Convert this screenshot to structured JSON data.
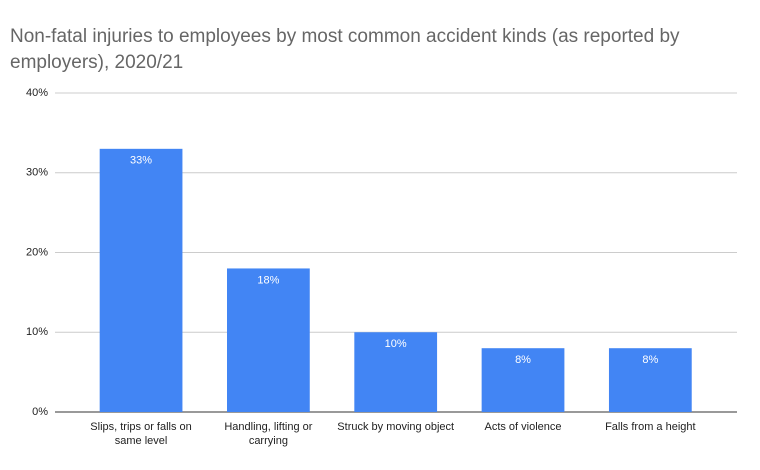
{
  "chart_data": {
    "type": "bar",
    "title": "Non-fatal injuries to employees by most common accident kinds (as reported by employers), 2020/21",
    "categories": [
      "Slips, trips or falls on same level",
      "Handling, lifting or carrying",
      "Struck by moving object",
      "Acts of violence",
      "Falls from a height"
    ],
    "values": [
      33,
      18,
      10,
      8,
      8
    ],
    "value_labels": [
      "33%",
      "18%",
      "10%",
      "8%",
      "8%"
    ],
    "color": "#4285f4",
    "ylim": [
      0,
      40
    ],
    "yticks": [
      {
        "value": 0,
        "label": "0%"
      },
      {
        "value": 10,
        "label": "10%"
      },
      {
        "value": 20,
        "label": "20%"
      },
      {
        "value": 30,
        "label": "30%"
      },
      {
        "value": 40,
        "label": "40%"
      }
    ],
    "grid": true
  }
}
